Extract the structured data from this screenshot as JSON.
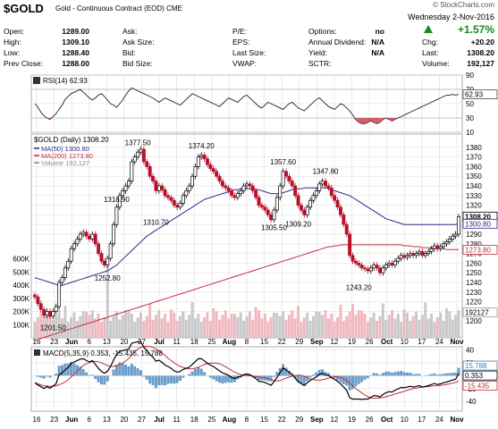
{
  "header": {
    "symbol": "$GOLD",
    "description": "Gold - Continuous Contract (EOD)",
    "exchange": "CME",
    "brand": "© StockCharts.com",
    "date": "Wednesday  2-Nov-2016",
    "change_pct": "+1.57%",
    "fields": [
      {
        "label": "Open:",
        "value": "1289.00"
      },
      {
        "label": "High:",
        "value": "1309.10"
      },
      {
        "label": "Low:",
        "value": "1288.40"
      },
      {
        "label": "Prev Close:",
        "value": "1288.00"
      }
    ],
    "fields2": [
      {
        "label": "Ask:",
        "value": ""
      },
      {
        "label": "Ask Size:",
        "value": ""
      },
      {
        "label": "Bid:",
        "value": ""
      },
      {
        "label": "Bid Size:",
        "value": ""
      }
    ],
    "fields3": [
      {
        "label": "P/E:",
        "value": ""
      },
      {
        "label": "EPS:",
        "value": ""
      },
      {
        "label": "Last Size:",
        "value": ""
      },
      {
        "label": "VWAP:",
        "value": ""
      }
    ],
    "fields4": [
      {
        "label": "Options:",
        "value": "no"
      },
      {
        "label": "Annual Dividend:",
        "value": "N/A"
      },
      {
        "label": "Yield:",
        "value": "N/A"
      },
      {
        "label": "SCTR:",
        "value": ""
      }
    ],
    "fields5": [
      {
        "label": "Chg:",
        "value": "+20.20"
      },
      {
        "label": "Last:",
        "value": "1308.20"
      },
      {
        "label": "Volume:",
        "value": "192,127"
      }
    ]
  },
  "chart_data": [
    {
      "type": "line",
      "panel": "RSI",
      "legend": "RSI(14) 62.93",
      "ylim": [
        10,
        90
      ],
      "ticks": [
        90,
        70,
        50,
        30,
        10
      ],
      "last_value_label": "62.93",
      "reference_lines": [
        70,
        30
      ],
      "x": [
        0,
        1,
        2,
        3,
        4,
        5,
        6,
        7,
        8,
        9,
        10,
        11,
        12,
        13,
        14,
        15,
        16,
        17,
        18,
        19,
        20,
        21,
        22,
        23,
        24,
        25,
        26,
        27,
        28,
        29,
        30,
        31,
        32,
        33,
        34,
        35,
        36,
        37,
        38,
        39,
        40,
        41,
        42,
        43,
        44,
        45,
        46,
        47,
        48,
        49,
        50,
        51,
        52,
        53,
        54,
        55,
        56,
        57,
        58,
        59,
        60,
        61,
        62,
        63,
        64,
        65,
        66,
        67,
        68,
        69,
        70,
        71,
        72,
        73,
        74,
        75,
        76,
        77,
        78,
        79,
        80,
        81,
        82,
        83,
        84,
        85,
        86,
        87,
        88,
        89,
        90,
        91,
        92,
        93,
        94,
        95,
        96,
        97,
        98,
        99,
        100,
        101,
        102,
        103,
        104,
        105,
        106,
        107,
        108,
        109,
        110,
        111,
        112,
        113,
        114,
        115,
        116,
        117,
        118,
        119,
        120,
        121,
        122,
        123,
        124,
        125,
        126,
        127,
        128,
        129,
        130,
        131,
        132,
        133,
        134,
        135,
        136,
        137,
        138,
        139,
        140
      ],
      "values": [
        50,
        45,
        38,
        33,
        30,
        28,
        32,
        36,
        42,
        48,
        56,
        60,
        64,
        66,
        68,
        70,
        66,
        62,
        58,
        55,
        58,
        62,
        64,
        60,
        55,
        50,
        48,
        45,
        50,
        55,
        62,
        68,
        72,
        70,
        68,
        66,
        64,
        62,
        60,
        58,
        55,
        52,
        55,
        58,
        56,
        54,
        52,
        50,
        48,
        52,
        56,
        60,
        64,
        62,
        60,
        58,
        56,
        54,
        52,
        50,
        48,
        46,
        50,
        54,
        58,
        56,
        54,
        52,
        56,
        60,
        62,
        58,
        54,
        50,
        46,
        44,
        48,
        52,
        50,
        48,
        46,
        44,
        42,
        46,
        50,
        52,
        48,
        44,
        42,
        40,
        44,
        48,
        52,
        56,
        58,
        54,
        50,
        46,
        44,
        42,
        46,
        50,
        48,
        44,
        40,
        34,
        28,
        24,
        22,
        22,
        24,
        26,
        24,
        22,
        24,
        28,
        30,
        28,
        26,
        28,
        30,
        32,
        34,
        36,
        38,
        40,
        42,
        44,
        46,
        48,
        50,
        52,
        54,
        56,
        58,
        60,
        62,
        62,
        63,
        62,
        63
      ]
    },
    {
      "type": "candlestick",
      "panel": "price",
      "title": "$GOLD (Daily) 1308.20",
      "legend": [
        {
          "name": "MA(50) 1300.80",
          "color": "#2b2b8c"
        },
        {
          "name": "MA(200) 1273.80",
          "color": "#c0303a"
        },
        {
          "name": "Volume 192,127",
          "color": "#888888"
        }
      ],
      "ylim": [
        1190,
        1390
      ],
      "ticks": [
        1380,
        1370,
        1360,
        1350,
        1340,
        1330,
        1320,
        1310,
        1300,
        1290,
        1280,
        1270,
        1260,
        1250,
        1240,
        1230,
        1220,
        1210,
        1200
      ],
      "last_labels": {
        "close": "1308.20",
        "ma50": "1300.80",
        "ma200": "1273.80"
      },
      "annotations": [
        {
          "text": "1201.50",
          "value": 1201.5
        },
        {
          "text": "1252.80",
          "value": 1252.8
        },
        {
          "text": "1318.90",
          "value": 1318.9
        },
        {
          "text": "1377.50",
          "value": 1377.5
        },
        {
          "text": "1310.70",
          "value": 1310.7
        },
        {
          "text": "1374.20",
          "value": 1374.2
        },
        {
          "text": "1305.50",
          "value": 1305.5
        },
        {
          "text": "1357.60",
          "value": 1357.6
        },
        {
          "text": "1309.20",
          "value": 1309.2
        },
        {
          "text": "1347.80",
          "value": 1347.8
        },
        {
          "text": "1243.20",
          "value": 1243.2
        }
      ],
      "close": [
        1225,
        1218,
        1212,
        1206,
        1210,
        1205,
        1210,
        1215,
        1240,
        1245,
        1255,
        1262,
        1275,
        1280,
        1285,
        1290,
        1292,
        1288,
        1285,
        1290,
        1280,
        1270,
        1262,
        1258,
        1265,
        1280,
        1300,
        1318,
        1330,
        1335,
        1340,
        1345,
        1365,
        1370,
        1375,
        1378,
        1365,
        1360,
        1350,
        1345,
        1335,
        1340,
        1336,
        1330,
        1328,
        1325,
        1320,
        1318,
        1322,
        1330,
        1335,
        1340,
        1350,
        1360,
        1370,
        1372,
        1368,
        1362,
        1358,
        1355,
        1350,
        1345,
        1340,
        1338,
        1335,
        1330,
        1328,
        1332,
        1335,
        1340,
        1342,
        1340,
        1335,
        1328,
        1320,
        1318,
        1315,
        1310,
        1305,
        1315,
        1328,
        1340,
        1355,
        1350,
        1345,
        1340,
        1330,
        1320,
        1315,
        1310,
        1318,
        1325,
        1330,
        1335,
        1342,
        1345,
        1340,
        1338,
        1330,
        1325,
        1318,
        1310,
        1300,
        1290,
        1268,
        1262,
        1260,
        1258,
        1255,
        1254,
        1252,
        1255,
        1258,
        1255,
        1250,
        1255,
        1258,
        1260,
        1258,
        1262,
        1265,
        1268,
        1266,
        1268,
        1270,
        1268,
        1270,
        1272,
        1268,
        1270,
        1272,
        1275,
        1278,
        1275,
        1277,
        1280,
        1282,
        1285,
        1288,
        1290,
        1308
      ],
      "ma50": [
        1245,
        1244,
        1243,
        1242,
        1241,
        1240,
        1239,
        1238,
        1237,
        1237,
        1238,
        1239,
        1240,
        1241,
        1242,
        1243,
        1244,
        1245,
        1246,
        1247,
        1248,
        1249,
        1250,
        1251,
        1252,
        1254,
        1256,
        1258,
        1261,
        1264,
        1267,
        1270,
        1273,
        1276,
        1279,
        1282,
        1285,
        1288,
        1290,
        1292,
        1294,
        1296,
        1298,
        1300,
        1302,
        1304,
        1306,
        1308,
        1310,
        1312,
        1314,
        1316,
        1318,
        1320,
        1322,
        1324,
        1326,
        1327,
        1328,
        1329,
        1330,
        1331,
        1332,
        1333,
        1334,
        1335,
        1336,
        1336,
        1337,
        1337,
        1337,
        1337,
        1337,
        1336,
        1336,
        1335,
        1334,
        1333,
        1332,
        1332,
        1332,
        1332,
        1333,
        1334,
        1335,
        1336,
        1337,
        1337,
        1337,
        1338,
        1338,
        1338,
        1338,
        1338,
        1338,
        1338,
        1338,
        1337,
        1336,
        1335,
        1334,
        1333,
        1332,
        1331,
        1330,
        1328,
        1326,
        1324,
        1322,
        1320,
        1318,
        1316,
        1314,
        1312,
        1310,
        1308,
        1306,
        1305,
        1304,
        1303,
        1302,
        1301,
        1300,
        1300,
        1300,
        1300,
        1300,
        1300,
        1300,
        1300,
        1300,
        1300,
        1300,
        1300,
        1300,
        1300,
        1300,
        1300,
        1300,
        1300,
        1301
      ],
      "ma200": [
        1180,
        1181,
        1182,
        1183,
        1184,
        1185,
        1186,
        1187,
        1188,
        1189,
        1190,
        1191,
        1192,
        1193,
        1194,
        1195,
        1196,
        1197,
        1198,
        1199,
        1200,
        1201,
        1202,
        1203,
        1204,
        1205,
        1206,
        1207,
        1208,
        1209,
        1210,
        1211,
        1212,
        1213,
        1214,
        1215,
        1216,
        1217,
        1218,
        1219,
        1220,
        1221,
        1222,
        1223,
        1224,
        1225,
        1226,
        1227,
        1228,
        1229,
        1230,
        1231,
        1232,
        1233,
        1234,
        1235,
        1236,
        1237,
        1238,
        1239,
        1240,
        1241,
        1242,
        1243,
        1244,
        1245,
        1246,
        1247,
        1248,
        1249,
        1250,
        1251,
        1252,
        1253,
        1254,
        1255,
        1256,
        1257,
        1258,
        1259,
        1260,
        1261,
        1262,
        1263,
        1264,
        1265,
        1266,
        1267,
        1268,
        1269,
        1270,
        1271,
        1272,
        1273,
        1274,
        1275,
        1276,
        1277,
        1277,
        1278,
        1278,
        1279,
        1279,
        1279,
        1279,
        1279,
        1279,
        1279,
        1279,
        1279,
        1279,
        1279,
        1279,
        1279,
        1279,
        1279,
        1279,
        1279,
        1279,
        1279,
        1279,
        1279,
        1278,
        1278,
        1278,
        1277,
        1277,
        1277,
        1276,
        1276,
        1276,
        1276,
        1275,
        1275,
        1275,
        1275,
        1274,
        1274,
        1274,
        1274,
        1274
      ]
    },
    {
      "type": "bar",
      "panel": "volume",
      "ticks": [
        "600K",
        "500K",
        "400K",
        "300K",
        "200K",
        "100K"
      ],
      "ylim": [
        0,
        650000
      ],
      "last_label": "192127"
    },
    {
      "type": "line",
      "panel": "MACD",
      "legend": "MACD(5,35,9) 0.353, -15.435, 15.788",
      "ylim": [
        -55,
        45
      ],
      "ticks": [
        40,
        20,
        0,
        -20,
        -40
      ],
      "last_labels": [
        "15.788",
        "0.353",
        "-15.435"
      ],
      "series": [
        {
          "name": "MACD",
          "color": "#000000"
        },
        {
          "name": "Signal",
          "color": "#c0303a"
        },
        {
          "name": "Histogram",
          "color": "#3b7cb8"
        }
      ]
    }
  ],
  "x_axis": {
    "labels": [
      "16",
      "23",
      "Jun",
      "6",
      "13",
      "20",
      "27",
      "Jul",
      "11",
      "18",
      "25",
      "Aug",
      "8",
      "15",
      "22",
      "29",
      "Sep",
      "12",
      "19",
      "26",
      "Oct",
      "10",
      "17",
      "24",
      "Nov"
    ],
    "bold": [
      "Jun",
      "Jul",
      "Aug",
      "Sep",
      "Oct",
      "Nov"
    ]
  },
  "colors": {
    "up": "#000000",
    "down": "#b8102a",
    "grid": "#dddddd",
    "ma50": "#2b2b8c",
    "ma200": "#c0303a",
    "volume": "#c9c9c9",
    "volume_down": "#f0b8c0"
  }
}
